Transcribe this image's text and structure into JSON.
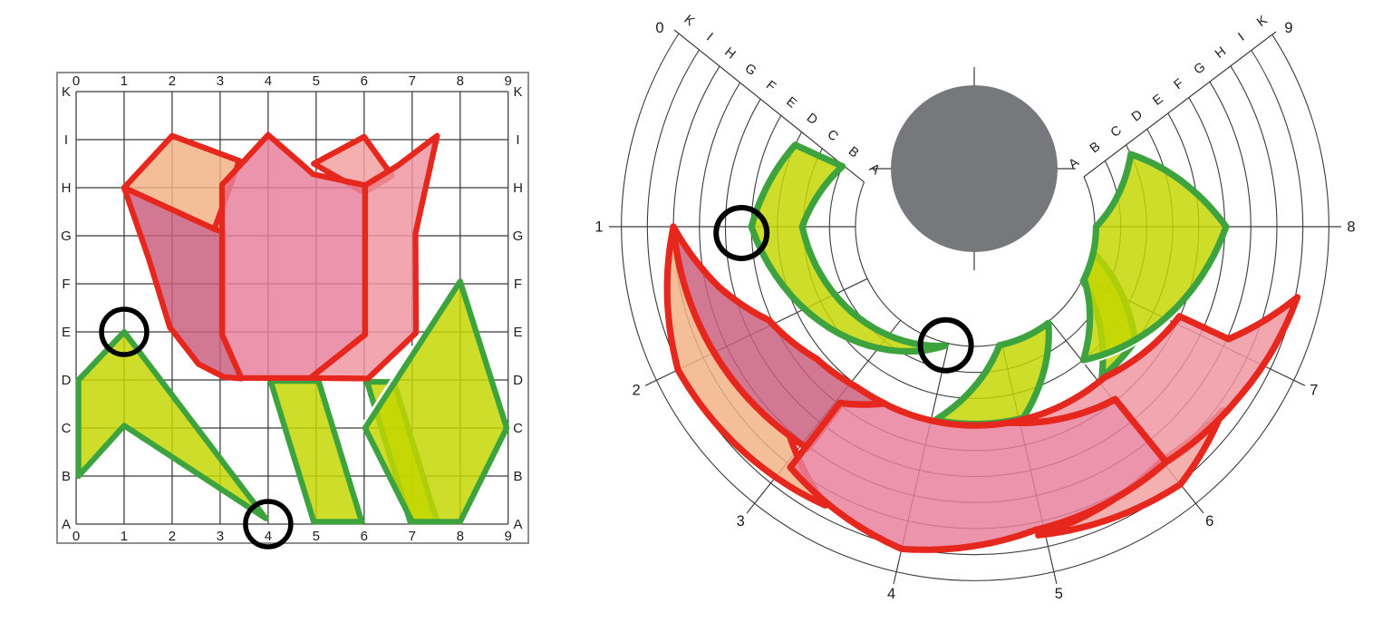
{
  "left_panel": {
    "type": "cartesian-grid",
    "column_labels": [
      "0",
      "1",
      "2",
      "3",
      "4",
      "5",
      "6",
      "7",
      "8",
      "9"
    ],
    "row_labels_top_to_bottom": [
      "K",
      "I",
      "H",
      "G",
      "F",
      "E",
      "D",
      "C",
      "B",
      "A"
    ]
  },
  "right_panel": {
    "type": "polar-grid",
    "angle_labels": [
      "0",
      "1",
      "2",
      "3",
      "4",
      "5",
      "6",
      "7",
      "8",
      "9"
    ],
    "ring_labels_inner_to_outer": [
      "A",
      "B",
      "C",
      "D",
      "E",
      "F",
      "G",
      "H",
      "I",
      "K"
    ]
  },
  "colors": {
    "background": "#ffffff",
    "grid_line": "#3a3a39",
    "frame": "#8f8f8e",
    "label": "#1d1d1b",
    "red_outline": "#e6271d",
    "pink_body": "#e87f9b",
    "dark_rose": "#cb5e7d",
    "salmon": "#f2b186",
    "light_pink": "#f2a0a0",
    "right_petal_pink": "#ee95a1",
    "green_outline": "#3da33e",
    "leaf_green": "#c3d600",
    "gray_circle": "#77787b",
    "marker": "#000000"
  },
  "shapes": {
    "green": [
      {
        "name": "stem-right",
        "points": [
          [
            6.06,
            2.96
          ],
          [
            6.62,
            2.96
          ],
          [
            7.52,
            0.05
          ],
          [
            6.96,
            0.05
          ]
        ]
      },
      {
        "name": "leaf-kite-right",
        "points": [
          [
            6.02,
            2.0
          ],
          [
            8.0,
            5.05
          ],
          [
            8.97,
            2.0
          ],
          [
            8.0,
            0.05
          ],
          [
            7.0,
            0.05
          ]
        ]
      },
      {
        "name": "stem-left",
        "points": [
          [
            4.05,
            2.98
          ],
          [
            5.05,
            2.98
          ],
          [
            5.95,
            0.05
          ],
          [
            4.95,
            0.05
          ]
        ]
      },
      {
        "name": "leaf-left",
        "points": [
          [
            1.0,
            4.0
          ],
          [
            3.95,
            0.12
          ],
          [
            1.0,
            2.05
          ],
          [
            0.05,
            1.0
          ],
          [
            0.05,
            3.0
          ]
        ]
      }
    ],
    "red": [
      {
        "name": "petal-back-light",
        "fill": "light_pink",
        "points": [
          [
            4.95,
            7.5
          ],
          [
            6.0,
            8.06
          ],
          [
            6.58,
            7.25
          ],
          [
            6.0,
            6.9
          ]
        ]
      },
      {
        "name": "petal-back-salmon",
        "fill": "salmon",
        "points": [
          [
            1.0,
            7.0
          ],
          [
            2.0,
            8.08
          ],
          [
            3.4,
            7.56
          ],
          [
            2.88,
            6.14
          ]
        ]
      },
      {
        "name": "petal-left-dark",
        "fill": "dark_rose",
        "points": [
          [
            1.0,
            7.0
          ],
          [
            2.88,
            6.14
          ],
          [
            3.06,
            6.08
          ],
          [
            3.06,
            3.92
          ],
          [
            3.45,
            3.03
          ],
          [
            3.08,
            3.06
          ],
          [
            2.55,
            3.33
          ],
          [
            1.95,
            4.1
          ],
          [
            1.52,
            5.5
          ]
        ]
      },
      {
        "name": "petal-front-body",
        "fill": "pink_body",
        "points": [
          [
            3.04,
            7.06
          ],
          [
            4.0,
            8.1
          ],
          [
            4.94,
            7.28
          ],
          [
            6.02,
            7.05
          ],
          [
            6.02,
            3.95
          ],
          [
            4.88,
            3.04
          ],
          [
            3.44,
            3.04
          ],
          [
            3.04,
            3.94
          ]
        ]
      },
      {
        "name": "petal-right",
        "fill": "right_petal_pink",
        "points": [
          [
            4.88,
            3.04
          ],
          [
            6.02,
            3.94
          ],
          [
            6.02,
            7.05
          ],
          [
            6.7,
            7.46
          ],
          [
            7.52,
            8.08
          ],
          [
            7.07,
            6.05
          ],
          [
            7.08,
            3.98
          ],
          [
            6.08,
            3.03
          ]
        ]
      }
    ]
  },
  "markers_grid_points": [
    [
      1,
      4
    ],
    [
      4,
      0
    ]
  ]
}
